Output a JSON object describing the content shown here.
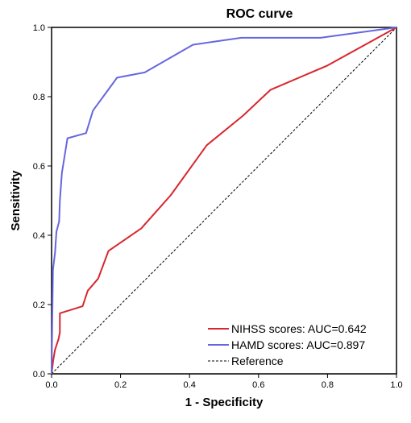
{
  "chart_data": {
    "type": "line",
    "title": "ROC curve",
    "xlabel": "1 - Specificity",
    "ylabel": "Sensitivity",
    "xlim": [
      0,
      1
    ],
    "ylim": [
      0,
      1
    ],
    "x_ticks": [
      "0.0",
      "0.2",
      "0.4",
      "0.6",
      "0.8",
      "1.0"
    ],
    "y_ticks": [
      "0.0",
      "0.2",
      "0.4",
      "0.6",
      "0.8",
      "1.0"
    ],
    "grid": false,
    "legend_position": "bottom-right",
    "series": [
      {
        "name": "NIHSS scores: AUC=0.642",
        "color": "#d9262e",
        "dash": "solid",
        "points": [
          [
            0,
            0
          ],
          [
            0.005,
            0.04
          ],
          [
            0.01,
            0.07
          ],
          [
            0.02,
            0.1
          ],
          [
            0.024,
            0.12
          ],
          [
            0.024,
            0.175
          ],
          [
            0.09,
            0.195
          ],
          [
            0.105,
            0.24
          ],
          [
            0.135,
            0.275
          ],
          [
            0.165,
            0.355
          ],
          [
            0.26,
            0.42
          ],
          [
            0.345,
            0.515
          ],
          [
            0.45,
            0.66
          ],
          [
            0.555,
            0.745
          ],
          [
            0.635,
            0.82
          ],
          [
            0.8,
            0.89
          ],
          [
            1,
            1
          ]
        ]
      },
      {
        "name": "HAMD scores: AUC=0.897",
        "color": "#6666e0",
        "dash": "solid",
        "points": [
          [
            0,
            0
          ],
          [
            0.004,
            0.3
          ],
          [
            0.01,
            0.35
          ],
          [
            0.014,
            0.41
          ],
          [
            0.022,
            0.44
          ],
          [
            0.024,
            0.5
          ],
          [
            0.03,
            0.58
          ],
          [
            0.046,
            0.68
          ],
          [
            0.1,
            0.695
          ],
          [
            0.12,
            0.76
          ],
          [
            0.19,
            0.855
          ],
          [
            0.27,
            0.87
          ],
          [
            0.41,
            0.95
          ],
          [
            0.55,
            0.97
          ],
          [
            0.78,
            0.97
          ],
          [
            1,
            1
          ]
        ]
      },
      {
        "name": "Reference",
        "color": "#000000",
        "dash": "dashed",
        "points": [
          [
            0,
            0
          ],
          [
            1,
            1
          ]
        ]
      }
    ]
  }
}
